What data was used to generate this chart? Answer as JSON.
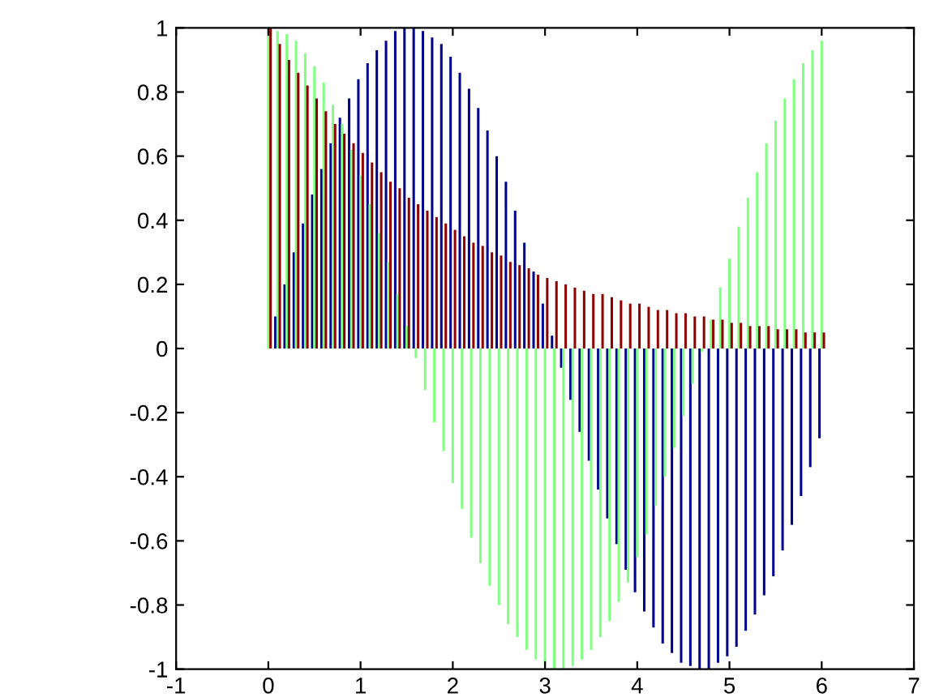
{
  "chart_data": {
    "type": "bar",
    "grid": false,
    "legend": false,
    "x": [
      0,
      0.1,
      0.2,
      0.3,
      0.4,
      0.5,
      0.6,
      0.7,
      0.8,
      0.9,
      1,
      1.1,
      1.2,
      1.3,
      1.4,
      1.5,
      1.6,
      1.7,
      1.8,
      1.9,
      2,
      2.1,
      2.2,
      2.3,
      2.4,
      2.5,
      2.6,
      2.7,
      2.8,
      2.9,
      3,
      3.1,
      3.2,
      3.3,
      3.4,
      3.5,
      3.6,
      3.7,
      3.8,
      3.9,
      4,
      4.1,
      4.2,
      4.3,
      4.4,
      4.5,
      4.6,
      4.7,
      4.8,
      4.9,
      5,
      5.1,
      5.2,
      5.3,
      5.4,
      5.5,
      5.6,
      5.7,
      5.8,
      5.9,
      6
    ],
    "series": [
      {
        "color": "#00008f",
        "values": [
          0,
          0.1,
          0.2,
          0.3,
          0.39,
          0.48,
          0.56,
          0.64,
          0.72,
          0.78,
          0.84,
          0.89,
          0.93,
          0.96,
          0.99,
          1.0,
          1.0,
          0.99,
          0.97,
          0.95,
          0.91,
          0.86,
          0.81,
          0.75,
          0.68,
          0.6,
          0.52,
          0.43,
          0.33,
          0.24,
          0.14,
          0.04,
          -0.06,
          -0.16,
          -0.26,
          -0.35,
          -0.44,
          -0.53,
          -0.61,
          -0.69,
          -0.76,
          -0.82,
          -0.87,
          -0.92,
          -0.95,
          -0.98,
          -0.99,
          -1.0,
          -1.0,
          -0.98,
          -0.96,
          -0.93,
          -0.88,
          -0.83,
          -0.77,
          -0.71,
          -0.63,
          -0.55,
          -0.46,
          -0.37,
          -0.28
        ]
      },
      {
        "color": "#80ff80",
        "values": [
          1.0,
          0.99,
          0.98,
          0.96,
          0.92,
          0.88,
          0.83,
          0.76,
          0.7,
          0.62,
          0.54,
          0.45,
          0.36,
          0.27,
          0.17,
          0.07,
          -0.03,
          -0.13,
          -0.23,
          -0.32,
          -0.42,
          -0.5,
          -0.59,
          -0.67,
          -0.74,
          -0.8,
          -0.86,
          -0.9,
          -0.94,
          -0.97,
          -0.99,
          -1.0,
          -1.0,
          -0.99,
          -0.97,
          -0.94,
          -0.9,
          -0.85,
          -0.79,
          -0.73,
          -0.65,
          -0.58,
          -0.49,
          -0.4,
          -0.31,
          -0.21,
          -0.11,
          -0.01,
          0.09,
          0.19,
          0.28,
          0.38,
          0.47,
          0.55,
          0.64,
          0.71,
          0.78,
          0.84,
          0.89,
          0.93,
          0.96
        ]
      },
      {
        "color": "#8f0000",
        "values": [
          1.0,
          0.95,
          0.9,
          0.86,
          0.82,
          0.78,
          0.74,
          0.7,
          0.67,
          0.64,
          0.61,
          0.58,
          0.55,
          0.52,
          0.5,
          0.47,
          0.45,
          0.43,
          0.41,
          0.39,
          0.37,
          0.35,
          0.33,
          0.32,
          0.3,
          0.29,
          0.27,
          0.26,
          0.25,
          0.23,
          0.22,
          0.21,
          0.2,
          0.19,
          0.18,
          0.17,
          0.17,
          0.16,
          0.15,
          0.14,
          0.14,
          0.13,
          0.12,
          0.12,
          0.11,
          0.11,
          0.1,
          0.1,
          0.09,
          0.09,
          0.08,
          0.08,
          0.07,
          0.07,
          0.07,
          0.06,
          0.06,
          0.06,
          0.05,
          0.05,
          0.05
        ]
      }
    ],
    "xlim": [
      -1,
      7
    ],
    "xticks": [
      -1,
      0,
      1,
      2,
      3,
      4,
      5,
      6,
      7
    ],
    "ylim": [
      -1,
      1
    ],
    "yticks": [
      -1,
      -0.8,
      -0.6,
      -0.4,
      -0.2,
      0,
      0.2,
      0.4,
      0.6,
      0.8,
      1
    ]
  }
}
